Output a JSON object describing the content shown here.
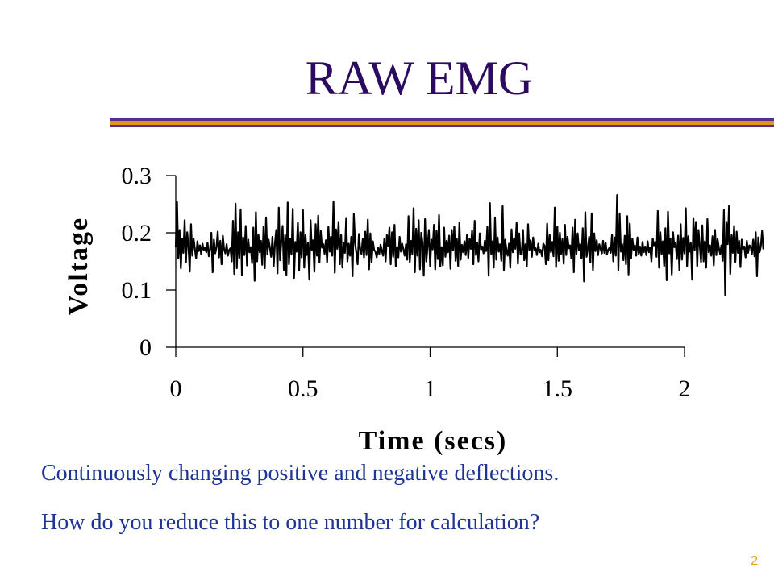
{
  "slide": {
    "title": "RAW EMG",
    "notes": [
      "Continuously changing positive and negative deflections.",
      "How do you reduce this to one number for calculation?"
    ],
    "page_number": "2"
  },
  "colors": {
    "title": "#2c0a60",
    "rule_purple": "#5b2a8a",
    "rule_gold": "#d99a1c",
    "note_text": "#1f3494",
    "page_number": "#e4a317",
    "signal": "#000000"
  },
  "chart_data": {
    "type": "line",
    "title": "",
    "xlabel": "Time (secs)",
    "ylabel": "Voltage",
    "xlim": [
      0,
      2
    ],
    "ylim": [
      0,
      0.3
    ],
    "x_ticks": [
      0,
      0.5,
      1,
      1.5,
      2
    ],
    "x_tick_labels": [
      "0",
      "0.5",
      "1",
      "1.5",
      "2"
    ],
    "y_ticks": [
      0,
      0.1,
      0.2,
      0.3
    ],
    "y_tick_labels": [
      "0",
      "0.1",
      "0.2",
      "0.3"
    ],
    "grid": false,
    "legend": "none",
    "series": [
      {
        "x_start": 0,
        "x_step": 0.005,
        "values": [
          0.175,
          0.254,
          0.155,
          0.205,
          0.138,
          0.19,
          0.165,
          0.222,
          0.148,
          0.201,
          0.176,
          0.132,
          0.215,
          0.16,
          0.19,
          0.172,
          0.155,
          0.185,
          0.168,
          0.178,
          0.162,
          0.181,
          0.17,
          0.174,
          0.166,
          0.183,
          0.159,
          0.172,
          0.2,
          0.131,
          0.188,
          0.164,
          0.174,
          0.202,
          0.157,
          0.186,
          0.145,
          0.195,
          0.171,
          0.164,
          0.18,
          0.16,
          0.17,
          0.173,
          0.15,
          0.221,
          0.128,
          0.251,
          0.138,
          0.201,
          0.156,
          0.241,
          0.126,
          0.192,
          0.161,
          0.212,
          0.143,
          0.188,
          0.166,
          0.175,
          0.147,
          0.209,
          0.116,
          0.236,
          0.15,
          0.197,
          0.166,
          0.186,
          0.144,
          0.211,
          0.138,
          0.227,
          0.162,
          0.188,
          0.174,
          0.158,
          0.193,
          0.142,
          0.182,
          0.205,
          0.129,
          0.244,
          0.152,
          0.185,
          0.212,
          0.135,
          0.196,
          0.126,
          0.253,
          0.145,
          0.19,
          0.162,
          0.242,
          0.121,
          0.184,
          0.167,
          0.218,
          0.134,
          0.201,
          0.157,
          0.24,
          0.139,
          0.196,
          0.161,
          0.182,
          0.118,
          0.222,
          0.169,
          0.187,
          0.132,
          0.215,
          0.16,
          0.23,
          0.148,
          0.203,
          0.174,
          0.18,
          0.163,
          0.187,
          0.148,
          0.211,
          0.167,
          0.193,
          0.16,
          0.255,
          0.13,
          0.206,
          0.172,
          0.219,
          0.145,
          0.197,
          0.139,
          0.182,
          0.165,
          0.226,
          0.15,
          0.181,
          0.16,
          0.193,
          0.124,
          0.233,
          0.182,
          0.165,
          0.145,
          0.198,
          0.171,
          0.163,
          0.189,
          0.157,
          0.202,
          0.161,
          0.223,
          0.136,
          0.199,
          0.148,
          0.185,
          0.17,
          0.167,
          0.157,
          0.174,
          0.163,
          0.179,
          0.169,
          0.16,
          0.19,
          0.15,
          0.196,
          0.177,
          0.209,
          0.145,
          0.201,
          0.158,
          0.214,
          0.141,
          0.175,
          0.157,
          0.193,
          0.167,
          0.181,
          0.171,
          0.16,
          0.18,
          0.153,
          0.229,
          0.149,
          0.186,
          0.163,
          0.243,
          0.131,
          0.207,
          0.16,
          0.222,
          0.136,
          0.2,
          0.183,
          0.125,
          0.224,
          0.15,
          0.176,
          0.205,
          0.142,
          0.188,
          0.171,
          0.214,
          0.136,
          0.204,
          0.154,
          0.231,
          0.141,
          0.175,
          0.143,
          0.209,
          0.158,
          0.186,
          0.166,
          0.195,
          0.137,
          0.205,
          0.169,
          0.211,
          0.151,
          0.189,
          0.142,
          0.218,
          0.153,
          0.179,
          0.166,
          0.185,
          0.161,
          0.197,
          0.156,
          0.19,
          0.172,
          0.204,
          0.145,
          0.221,
          0.161,
          0.183,
          0.15,
          0.199,
          0.171,
          0.176,
          0.164,
          0.186,
          0.168,
          0.211,
          0.125,
          0.252,
          0.163,
          0.185,
          0.139,
          0.227,
          0.153,
          0.192,
          0.167,
          0.18,
          0.151,
          0.247,
          0.135,
          0.188,
          0.17,
          0.16,
          0.181,
          0.139,
          0.206,
          0.166,
          0.19,
          0.172,
          0.218,
          0.146,
          0.199,
          0.163,
          0.162,
          0.205,
          0.152,
          0.18,
          0.141,
          0.215,
          0.169,
          0.187,
          0.158,
          0.192,
          0.17,
          0.173,
          0.161,
          0.181,
          0.166,
          0.17,
          0.159,
          0.181,
          0.177,
          0.145,
          0.216,
          0.152,
          0.196,
          0.166,
          0.184,
          0.159,
          0.244,
          0.14,
          0.211,
          0.151,
          0.2,
          0.163,
          0.189,
          0.146,
          0.214,
          0.161,
          0.193,
          0.173,
          0.178,
          0.155,
          0.209,
          0.131,
          0.223,
          0.162,
          0.199,
          0.169,
          0.18,
          0.155,
          0.208,
          0.115,
          0.236,
          0.158,
          0.172,
          0.193,
          0.148,
          0.234,
          0.135,
          0.199,
          0.168,
          0.187,
          0.161,
          0.18,
          0.172,
          0.164,
          0.186,
          0.165,
          0.183,
          0.162,
          0.17,
          0.174,
          0.165,
          0.197,
          0.15,
          0.192,
          0.16,
          0.266,
          0.134,
          0.234,
          0.167,
          0.18,
          0.152,
          0.195,
          0.145,
          0.229,
          0.127,
          0.216,
          0.155,
          0.19,
          0.17,
          0.178,
          0.16,
          0.192,
          0.163,
          0.176,
          0.16,
          0.184,
          0.166,
          0.176,
          0.161,
          0.185,
          0.166,
          0.174,
          0.15,
          0.19,
          0.178,
          0.184,
          0.158,
          0.238,
          0.139,
          0.201,
          0.163,
          0.185,
          0.142,
          0.208,
          0.117,
          0.237,
          0.164,
          0.19,
          0.127,
          0.201,
          0.175,
          0.182,
          0.154,
          0.195,
          0.134,
          0.215,
          0.153,
          0.191,
          0.164,
          0.243,
          0.141,
          0.194,
          0.167,
          0.182,
          0.118,
          0.226,
          0.17,
          0.219,
          0.141,
          0.205,
          0.178,
          0.149,
          0.213,
          0.15,
          0.185,
          0.139,
          0.224,
          0.166,
          0.178,
          0.16,
          0.194,
          0.143,
          0.205,
          0.161,
          0.189,
          0.174,
          0.163,
          0.178,
          0.151,
          0.24,
          0.091,
          0.219,
          0.18,
          0.247,
          0.128,
          0.196,
          0.165,
          0.212,
          0.149,
          0.202,
          0.165,
          0.186,
          0.14,
          0.188,
          0.172,
          0.176,
          0.157,
          0.186,
          0.165,
          0.178,
          0.176,
          0.163,
          0.188,
          0.159,
          0.201,
          0.124,
          0.192,
          0.166,
          0.176,
          0.203,
          0.171
        ]
      }
    ]
  }
}
